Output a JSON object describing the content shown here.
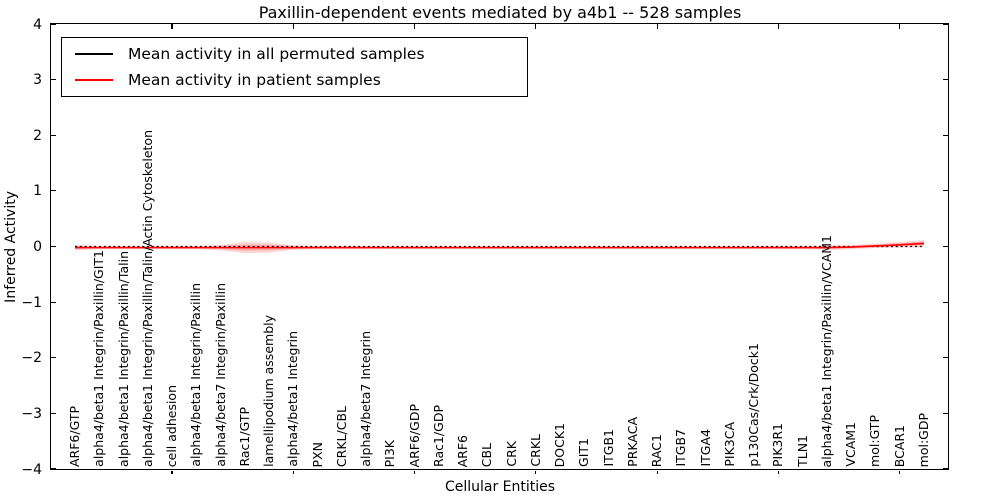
{
  "chart_data": {
    "type": "line",
    "title": "Paxillin-dependent events mediated by a4b1 -- 528 samples",
    "xlabel": "Cellular Entities",
    "ylabel": "Inferred Activity",
    "ylim": [
      -4,
      4
    ],
    "yticks": [
      -4,
      -3,
      -2,
      -1,
      0,
      1,
      2,
      3,
      4
    ],
    "ytick_labels": [
      "−4",
      "−3",
      "−2",
      "−1",
      "0",
      "1",
      "2",
      "3",
      "4"
    ],
    "grid": false,
    "legend_position": "upper left",
    "sparse_xtick_indices": [
      4,
      9,
      14,
      19,
      24,
      29,
      34
    ],
    "categories": [
      "ARF6/GTP",
      "alpha4/beta1 Integrin/Paxillin/GIT1",
      "alpha4/beta1 Integrin/Paxillin/Talin",
      "alpha4/beta1 Integrin/Paxillin/Talin/Actin Cytoskeleton",
      "cell adhesion",
      "alpha4/beta1 Integrin/Paxillin",
      "alpha4/beta7 Integrin/Paxillin",
      "Rac1/GTP",
      "lamellipodium assembly",
      "alpha4/beta1 Integrin",
      "PXN",
      "CRKL/CBL",
      "alpha4/beta7 Integrin",
      "PI3K",
      "ARF6/GDP",
      "Rac1/GDP",
      "ARF6",
      "CBL",
      "CRK",
      "CRKL",
      "DOCK1",
      "GIT1",
      "ITGB1",
      "PRKACA",
      "RAC1",
      "ITGB7",
      "ITGA4",
      "PIK3CA",
      "p130Cas/Crk/Dock1",
      "PIK3R1",
      "TLN1",
      "alpha4/beta1 Integrin/Paxillin/VCAM1",
      "VCAM1",
      "mol:GTP",
      "BCAR1",
      "mol:GDP"
    ],
    "series": [
      {
        "name": "Mean activity in all permuted samples",
        "color": "#000000",
        "style": "dashed",
        "values": [
          0,
          0,
          0,
          0,
          0,
          0,
          0,
          0,
          0,
          0,
          0,
          0,
          0,
          0,
          0,
          0,
          0,
          0,
          0,
          0,
          0,
          0,
          0,
          0,
          0,
          0,
          0,
          0,
          0,
          0,
          0,
          0,
          0,
          0,
          0,
          0
        ]
      },
      {
        "name": "Mean activity in patient samples",
        "color": "#ff0000",
        "style": "solid",
        "values": [
          -0.02,
          -0.02,
          -0.02,
          -0.02,
          -0.02,
          -0.02,
          -0.02,
          -0.02,
          -0.02,
          -0.02,
          -0.02,
          -0.02,
          -0.02,
          -0.02,
          -0.02,
          -0.02,
          -0.02,
          -0.02,
          -0.02,
          -0.02,
          -0.02,
          -0.02,
          -0.02,
          -0.02,
          -0.02,
          -0.02,
          -0.02,
          -0.02,
          -0.02,
          -0.02,
          -0.02,
          -0.02,
          -0.01,
          0.01,
          0.03,
          0.055
        ],
        "band_halfwidth": [
          0.05,
          0.03,
          0.03,
          0.03,
          0.03,
          0.03,
          0.05,
          0.1,
          0.09,
          0.04,
          0.03,
          0.03,
          0.03,
          0.025,
          0.025,
          0.025,
          0.025,
          0.025,
          0.025,
          0.025,
          0.025,
          0.025,
          0.025,
          0.025,
          0.025,
          0.025,
          0.025,
          0.025,
          0.025,
          0.03,
          0.03,
          0.04,
          0.04,
          0.04,
          0.05,
          0.06
        ],
        "band_color": "#ff0000"
      }
    ]
  }
}
